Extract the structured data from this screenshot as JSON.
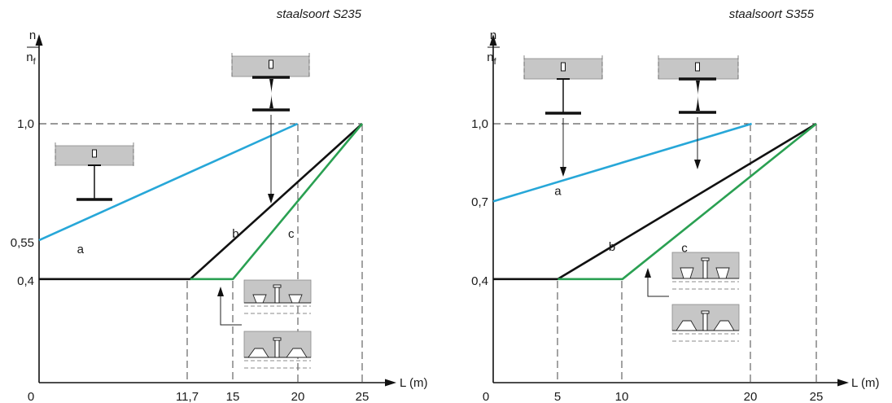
{
  "chart_data": [
    {
      "type": "line",
      "title": "staalsoort S235",
      "xlabel": "L (m)",
      "ylabel_num": "n",
      "ylabel_den": "n",
      "ylabel_den_sub": "f",
      "xlim": [
        0,
        25
      ],
      "ylim": [
        0,
        1.0
      ],
      "x_ticks": [
        {
          "value": 0,
          "label": "0"
        },
        {
          "value": 11.7,
          "label": "11,7"
        },
        {
          "value": 15,
          "label": "15"
        },
        {
          "value": 20,
          "label": "20"
        },
        {
          "value": 25,
          "label": "25"
        }
      ],
      "y_ticks": [
        {
          "value": 0.4,
          "label": "0,4"
        },
        {
          "value": 0.55,
          "label": "0,55"
        },
        {
          "value": 1.0,
          "label": "1,0"
        }
      ],
      "series": [
        {
          "name": "a",
          "color": "#27a7d8",
          "points": [
            [
              0,
              0.55
            ],
            [
              20,
              1.0
            ]
          ],
          "label_at": [
            3.2,
            0.5
          ]
        },
        {
          "name": "b",
          "color": "#111111",
          "points": [
            [
              0,
              0.4
            ],
            [
              11.7,
              0.4
            ],
            [
              25,
              1.0
            ]
          ],
          "label_at": [
            15.2,
            0.56
          ]
        },
        {
          "name": "c",
          "color": "#2aa052",
          "points": [
            [
              11.7,
              0.4
            ],
            [
              15,
              0.4
            ],
            [
              25,
              1.0
            ]
          ],
          "label_at": [
            19.5,
            0.56
          ]
        }
      ],
      "grid": false
    },
    {
      "type": "line",
      "title": "staalsoort S355",
      "xlabel": "L (m)",
      "ylabel_num": "n",
      "ylabel_den": "n",
      "ylabel_den_sub": "f",
      "xlim": [
        0,
        25
      ],
      "ylim": [
        0,
        1.0
      ],
      "x_ticks": [
        {
          "value": 0,
          "label": "0"
        },
        {
          "value": 5,
          "label": "5"
        },
        {
          "value": 10,
          "label": "10"
        },
        {
          "value": 20,
          "label": "20"
        },
        {
          "value": 25,
          "label": "25"
        }
      ],
      "y_ticks": [
        {
          "value": 0.4,
          "label": "0,4"
        },
        {
          "value": 0.7,
          "label": "0,7"
        },
        {
          "value": 1.0,
          "label": "1,0"
        }
      ],
      "series": [
        {
          "name": "a",
          "color": "#27a7d8",
          "points": [
            [
              0,
              0.7
            ],
            [
              20,
              1.0
            ]
          ],
          "label_at": [
            5.0,
            0.725
          ]
        },
        {
          "name": "b",
          "color": "#111111",
          "points": [
            [
              0,
              0.4
            ],
            [
              5,
              0.4
            ],
            [
              25,
              1.0
            ]
          ],
          "label_at": [
            9.2,
            0.51
          ]
        },
        {
          "name": "c",
          "color": "#2aa052",
          "points": [
            [
              5,
              0.4
            ],
            [
              10,
              0.4
            ],
            [
              25,
              1.0
            ]
          ],
          "label_at": [
            14.8,
            0.505
          ]
        }
      ],
      "grid": false
    }
  ]
}
